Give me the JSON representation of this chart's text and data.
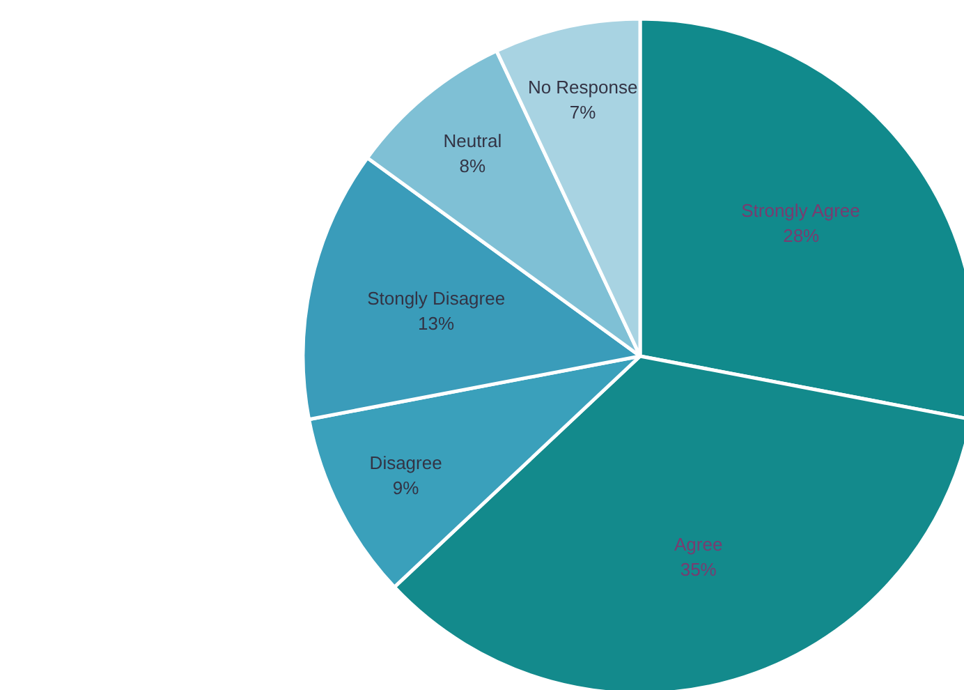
{
  "chart_data": {
    "type": "pie",
    "categories": [
      "Strongly Agree",
      "Agree",
      "Disagree",
      "Stongly Disagree",
      "Neutral",
      "No Response"
    ],
    "values": [
      28,
      35,
      9,
      13,
      8,
      7
    ],
    "colors": [
      "#118a8c",
      "#138a8c",
      "#3aa0bb",
      "#3a9cba",
      "#7fc0d5",
      "#a8d3e2"
    ],
    "value_labels": [
      "28%",
      "35%",
      "9%",
      "13%",
      "8%",
      "7%"
    ]
  }
}
